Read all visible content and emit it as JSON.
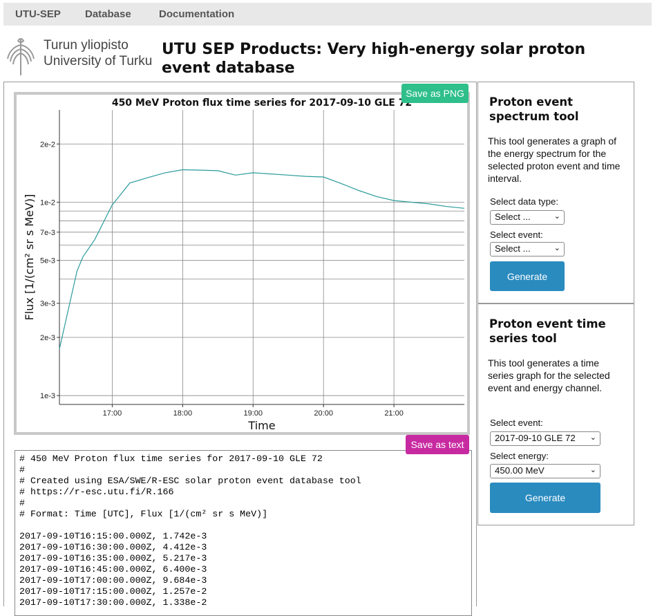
{
  "nav": [
    "UTU-SEP",
    "Database",
    "Documentation"
  ],
  "logo": {
    "line1": "Turun yliopisto",
    "line2": "University of Turku"
  },
  "page_title": "UTU SEP Products: Very high-energy solar proton event database",
  "buttons": {
    "save_png": "Save as PNG",
    "save_text": "Save as text"
  },
  "chart_data": {
    "type": "line",
    "title": "450 MeV Proton flux time series for 2017-09-10 GLE 72",
    "xlabel": "Time",
    "ylabel": "Flux [1/(cm² sr s MeV)]",
    "yscale": "log",
    "xticks": [
      "17:00",
      "18:00",
      "19:00",
      "20:00",
      "21:00"
    ],
    "yticks": [
      "1e-3",
      "2e-3",
      "3e-3",
      "5e-3",
      "7e-3",
      "1e-2",
      "2e-2"
    ],
    "grid": true,
    "x": [
      "16:15",
      "16:30",
      "16:35",
      "16:45",
      "17:00",
      "17:15",
      "17:30",
      "17:45",
      "18:00",
      "18:15",
      "18:30",
      "18:45",
      "19:00",
      "19:15",
      "19:30",
      "19:45",
      "20:00",
      "20:15",
      "20:30",
      "20:45",
      "21:00",
      "21:15",
      "21:30",
      "21:45",
      "22:00"
    ],
    "values": [
      0.001742,
      0.004412,
      0.005217,
      0.0064,
      0.009684,
      0.01257,
      0.01338,
      0.0142,
      0.01472,
      0.01465,
      0.01455,
      0.0138,
      0.0142,
      0.014,
      0.0138,
      0.0136,
      0.0135,
      0.0125,
      0.0115,
      0.0107,
      0.0102,
      0.01,
      0.0098,
      0.0095,
      0.0093
    ],
    "line_color": "#2a9a9a"
  },
  "text_output": [
    "# 450 MeV Proton flux time series for 2017-09-10 GLE 72",
    "#",
    "# Created using ESA/SWE/R-ESC solar proton event database tool",
    "# https://r-esc.utu.fi/R.166",
    "#",
    "# Format: Time [UTC], Flux [1/(cm² sr s MeV)]",
    "",
    "2017-09-10T16:15:00.000Z, 1.742e-3",
    "2017-09-10T16:30:00.000Z, 4.412e-3",
    "2017-09-10T16:35:00.000Z, 5.217e-3",
    "2017-09-10T16:45:00.000Z, 6.400e-3",
    "2017-09-10T17:00:00.000Z, 9.684e-3",
    "2017-09-10T17:15:00.000Z, 1.257e-2",
    "2017-09-10T17:30:00.000Z, 1.338e-2"
  ],
  "spectrum_tool": {
    "title": "Proton event spectrum tool",
    "desc": "This tool generates a graph of the energy spectrum for the selected proton event and time interval.",
    "data_type_label": "Select data type:",
    "data_type_value": "Select ...",
    "event_label": "Select event:",
    "event_value": "Select ...",
    "generate": "Generate"
  },
  "timeseries_tool": {
    "title": "Proton event time series tool",
    "desc": "This tool generates a time series graph for the selected event and energy channel.",
    "event_label": "Select event:",
    "event_value": "2017-09-10 GLE 72",
    "energy_label": "Select energy:",
    "energy_value": "450.00 MeV",
    "generate": "Generate"
  }
}
